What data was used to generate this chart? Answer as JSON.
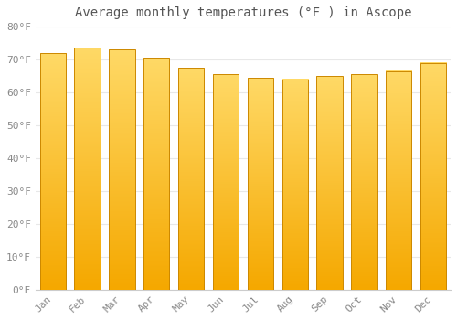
{
  "title": "Average monthly temperatures (°F ) in Ascope",
  "months": [
    "Jan",
    "Feb",
    "Mar",
    "Apr",
    "May",
    "Jun",
    "Jul",
    "Aug",
    "Sep",
    "Oct",
    "Nov",
    "Dec"
  ],
  "values": [
    72,
    73.5,
    73,
    70.5,
    67.5,
    65.5,
    64.5,
    64,
    65,
    65.5,
    66.5,
    69
  ],
  "bar_color_bottom": "#F5A800",
  "bar_color_top": "#FFD966",
  "bar_edge_color": "#CC8800",
  "background_color": "#FFFFFF",
  "plot_bg_color": "#FFFFFF",
  "ylim": [
    0,
    80
  ],
  "yticks": [
    0,
    10,
    20,
    30,
    40,
    50,
    60,
    70,
    80
  ],
  "ytick_labels": [
    "0°F",
    "10°F",
    "20°F",
    "30°F",
    "40°F",
    "50°F",
    "60°F",
    "70°F",
    "80°F"
  ],
  "grid_color": "#E8E8E8",
  "title_fontsize": 10,
  "tick_fontsize": 8,
  "tick_color": "#888888",
  "spine_color": "#CCCCCC",
  "bar_width": 0.75,
  "gradient_steps": 100
}
